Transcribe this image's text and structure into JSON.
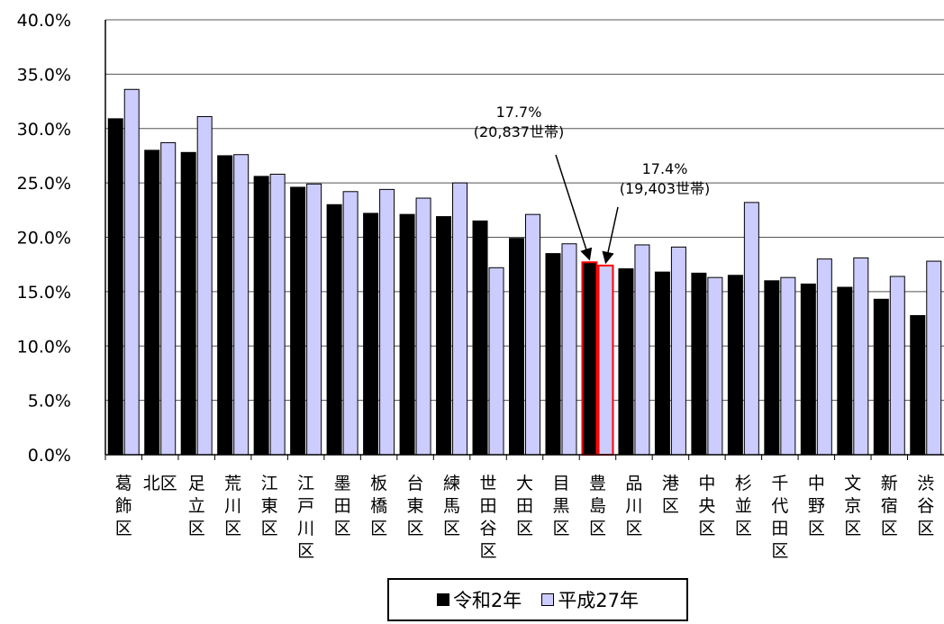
{
  "chart_data": {
    "type": "bar",
    "categories": [
      "葛飾区",
      "北区",
      "足立区",
      "荒川区",
      "江東区",
      "江戸川区",
      "墨田区",
      "板橋区",
      "台東区",
      "練馬区",
      "世田谷区",
      "大田区",
      "目黒区",
      "豊島区",
      "品川区",
      "港区",
      "中央区",
      "杉並区",
      "千代田区",
      "中野区",
      "文京区",
      "新宿区",
      "渋谷区"
    ],
    "category_label_lines": [
      [
        "葛",
        "飾",
        "区"
      ],
      [
        "北区"
      ],
      [
        "足",
        "立",
        "区"
      ],
      [
        "荒",
        "川",
        "区"
      ],
      [
        "江",
        "東",
        "区"
      ],
      [
        "江",
        "戸",
        "川",
        "区"
      ],
      [
        "墨",
        "田",
        "区"
      ],
      [
        "板",
        "橋",
        "区"
      ],
      [
        "台",
        "東",
        "区"
      ],
      [
        "練",
        "馬",
        "区"
      ],
      [
        "世",
        "田",
        "谷",
        "区"
      ],
      [
        "大",
        "田",
        "区"
      ],
      [
        "目",
        "黒",
        "区"
      ],
      [
        "豊",
        "島",
        "区"
      ],
      [
        "品",
        "川",
        "区"
      ],
      [
        "港",
        "区"
      ],
      [
        "中",
        "央",
        "区"
      ],
      [
        "杉",
        "並",
        "区"
      ],
      [
        "千",
        "代",
        "田",
        "区"
      ],
      [
        "中",
        "野",
        "区"
      ],
      [
        "文",
        "京",
        "区"
      ],
      [
        "新",
        "宿",
        "区"
      ],
      [
        "渋",
        "谷",
        "区"
      ]
    ],
    "series": [
      {
        "name": "令和2年",
        "color": "#000000",
        "values": [
          30.9,
          28.0,
          27.8,
          27.5,
          25.6,
          24.6,
          23.0,
          22.2,
          22.1,
          21.9,
          21.5,
          19.9,
          18.5,
          17.7,
          17.1,
          16.8,
          16.7,
          16.5,
          16.0,
          15.7,
          15.4,
          14.3,
          12.8
        ]
      },
      {
        "name": "平成27年",
        "color": "#ccccff",
        "values": [
          33.6,
          28.7,
          31.1,
          27.6,
          25.8,
          24.9,
          24.2,
          24.4,
          23.6,
          25.0,
          17.2,
          22.1,
          19.4,
          17.4,
          19.3,
          19.1,
          16.3,
          23.2,
          16.3,
          18.0,
          18.1,
          16.4,
          17.8
        ]
      }
    ],
    "ylim": [
      0,
      40
    ],
    "yticks": [
      "0.0%",
      "5.0%",
      "10.0%",
      "15.0%",
      "20.0%",
      "25.0%",
      "30.0%",
      "35.0%",
      "40.0%"
    ],
    "grid": true,
    "highlight_category": "豊島区",
    "highlight_color": "#ff0000",
    "annotations": [
      {
        "lines": [
          "17.7%",
          "(20,837世帯)"
        ],
        "target_series": "令和2年",
        "target_category": "豊島区"
      },
      {
        "lines": [
          "17.4%",
          "(19,403世帯)"
        ],
        "target_series": "平成27年",
        "target_category": "豊島区"
      }
    ],
    "legend": {
      "position": "bottom"
    }
  },
  "legend_labels": [
    "令和2年",
    "平成27年"
  ]
}
